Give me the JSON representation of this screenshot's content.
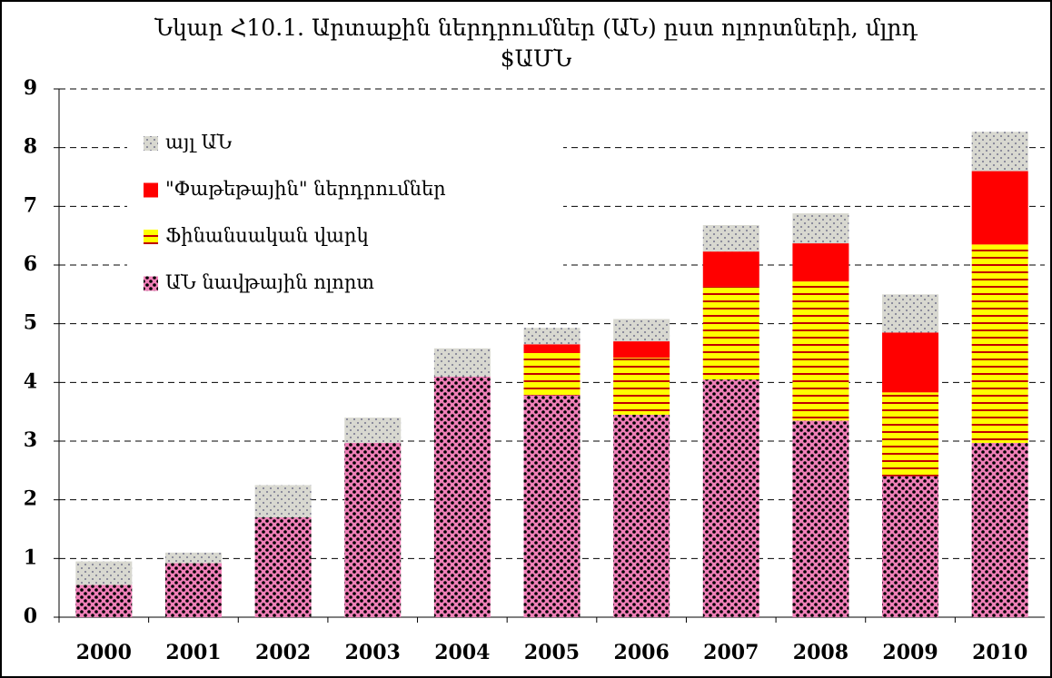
{
  "chart_data": {
    "type": "stacked_bar",
    "title": "Նկար Հ10.1. Արտաքին ներդրումներ (ԱՆ) ըստ ոլորտների, մլրդ $ԱՄՆ",
    "categories": [
      "2000",
      "2001",
      "2002",
      "2003",
      "2004",
      "2005",
      "2006",
      "2007",
      "2008",
      "2009",
      "2010"
    ],
    "series": [
      {
        "name": "ԱՆ նավթային ոլորտ",
        "color": "#f080b8",
        "values": [
          0.55,
          0.92,
          1.7,
          2.97,
          4.1,
          3.78,
          3.45,
          4.05,
          3.35,
          2.4,
          2.97
        ]
      },
      {
        "name": "Ֆինանսական վարկ",
        "color": "#ffff00",
        "values": [
          0,
          0,
          0,
          0,
          0,
          0.72,
          0.97,
          1.58,
          2.37,
          1.43,
          3.38
        ]
      },
      {
        "name": "\"Փաթեթային\" ներդրումներ",
        "color": "#ff0000",
        "values": [
          0,
          0,
          0,
          0,
          0,
          0.15,
          0.28,
          0.6,
          0.65,
          1.02,
          1.25
        ]
      },
      {
        "name": "այլ ԱՆ",
        "color": "#d8d8d0",
        "values": [
          0.4,
          0.18,
          0.55,
          0.43,
          0.48,
          0.28,
          0.38,
          0.45,
          0.51,
          0.65,
          0.67
        ]
      }
    ],
    "ylim": [
      0,
      9
    ],
    "yticks": [
      0,
      1,
      2,
      3,
      4,
      5,
      6,
      7,
      8,
      9
    ],
    "grid": true,
    "legend": "upper left"
  }
}
